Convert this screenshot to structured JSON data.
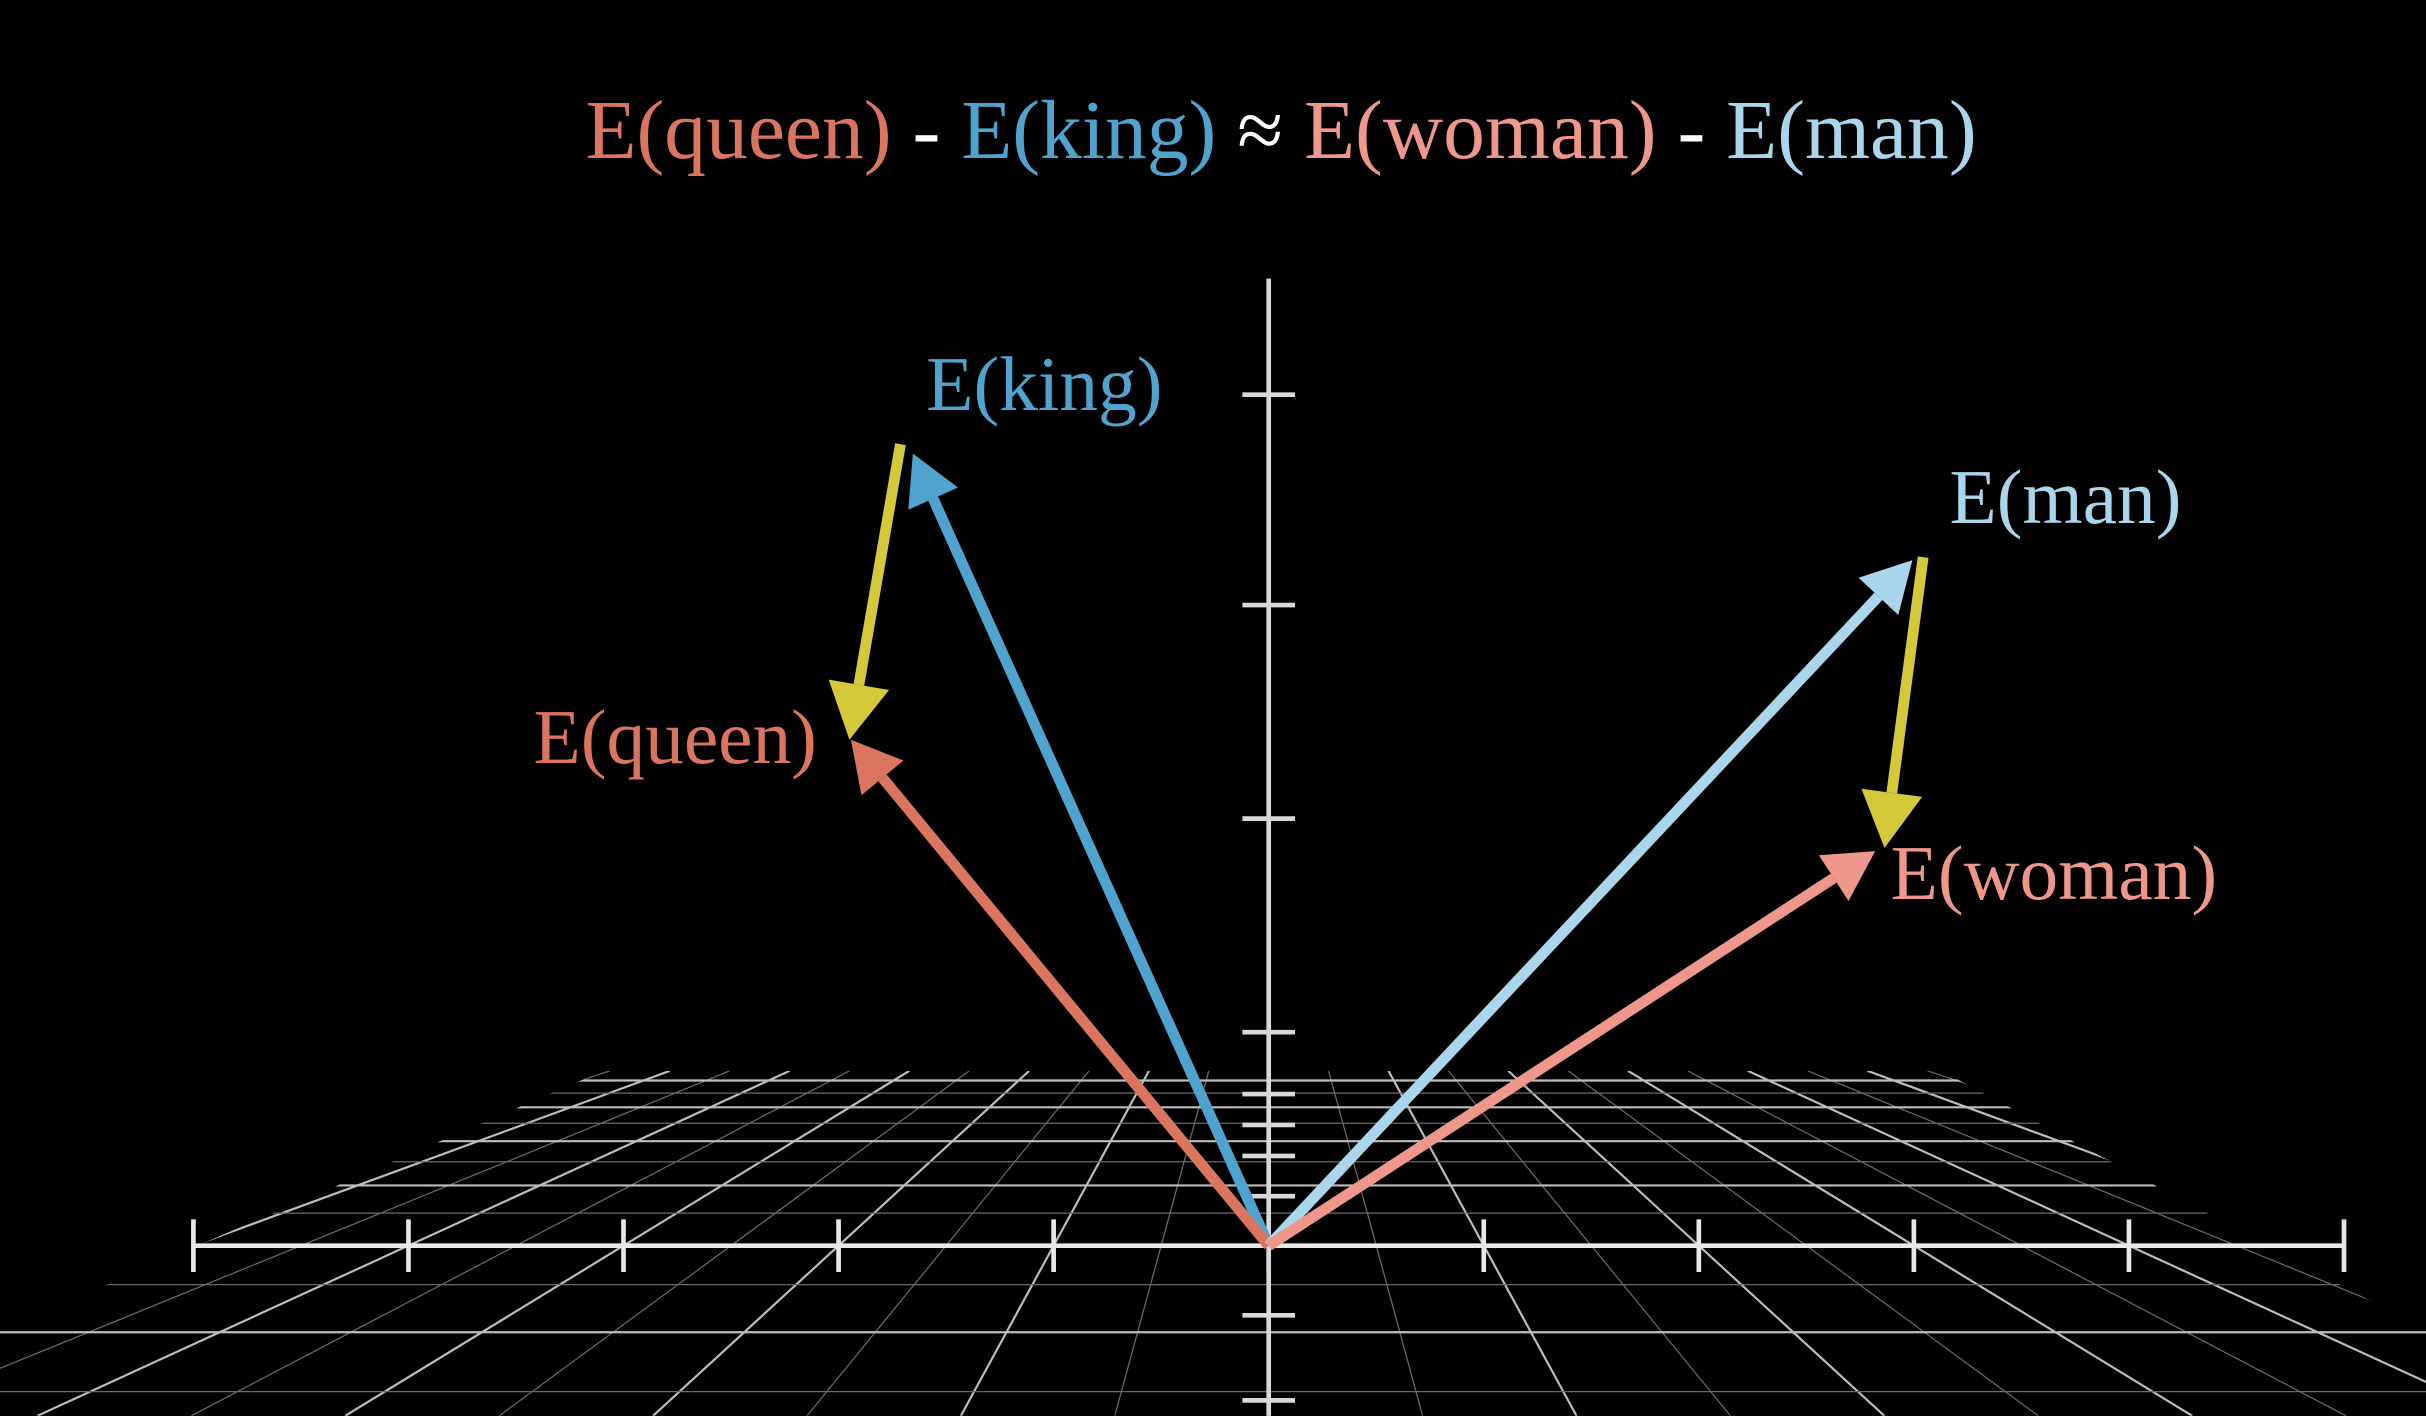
{
  "equation": {
    "parts": [
      {
        "text": "E(queen)",
        "color": "#dc7560"
      },
      {
        "text": "-",
        "color": "#ffffff"
      },
      {
        "text": "E(king)",
        "color": "#4fa3cf"
      },
      {
        "text": "≈",
        "color": "#ffffff"
      },
      {
        "text": "E(woman)",
        "color": "#f0978b"
      },
      {
        "text": "-",
        "color": "#ffffff"
      },
      {
        "text": "E(man)",
        "color": "#a9d6ea"
      }
    ]
  },
  "vectors": [
    {
      "label": "E(king)",
      "color": "#4fa3cf"
    },
    {
      "label": "E(queen)",
      "color": "#dc7560"
    },
    {
      "label": "E(man)",
      "color": "#a9d6ea"
    },
    {
      "label": "E(woman)",
      "color": "#f0978b"
    }
  ]
}
